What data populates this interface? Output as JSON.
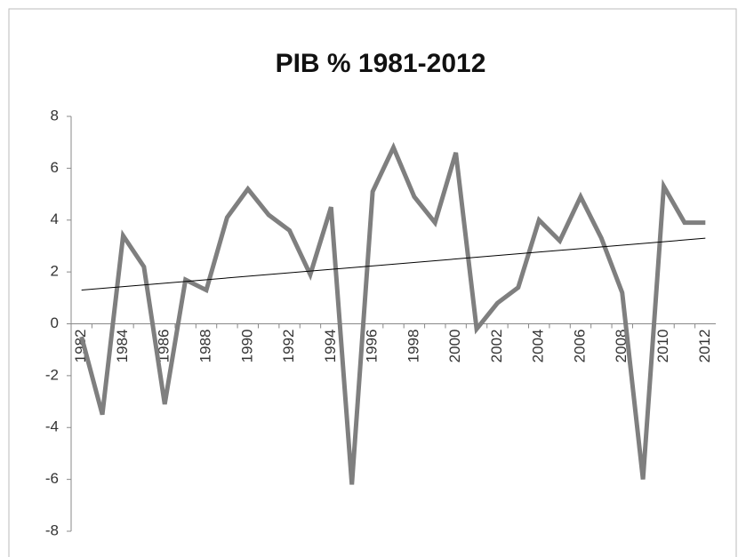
{
  "chart_data": {
    "type": "line",
    "title": "PIB % 1981-2012",
    "categories": [
      "1982",
      null,
      "1984",
      null,
      "1986",
      null,
      "1988",
      null,
      "1990",
      null,
      "1992",
      null,
      "1994",
      null,
      "1996",
      null,
      "1998",
      null,
      "2000",
      null,
      "2002",
      null,
      "2004",
      null,
      "2006",
      null,
      "2008",
      null,
      "2010",
      null,
      "2012"
    ],
    "series": [
      {
        "color": "#7f7f7f",
        "values": [
          -0.5,
          -3.5,
          3.4,
          2.2,
          -3.1,
          1.7,
          1.3,
          4.1,
          5.2,
          4.2,
          3.6,
          1.9,
          4.5,
          -6.2,
          5.1,
          6.8,
          4.9,
          3.9,
          6.6,
          -0.2,
          0.8,
          1.4,
          4.0,
          3.2,
          4.9,
          3.3,
          1.2,
          -6.0,
          5.3,
          3.9,
          3.9
        ]
      }
    ],
    "trendline": {
      "color": "#000000",
      "values": [
        1.3,
        3.3
      ]
    },
    "ylim": [
      -8,
      8
    ],
    "yticks": [
      -8,
      -6,
      -4,
      -2,
      0,
      2,
      4,
      6,
      8
    ],
    "grid": false
  }
}
